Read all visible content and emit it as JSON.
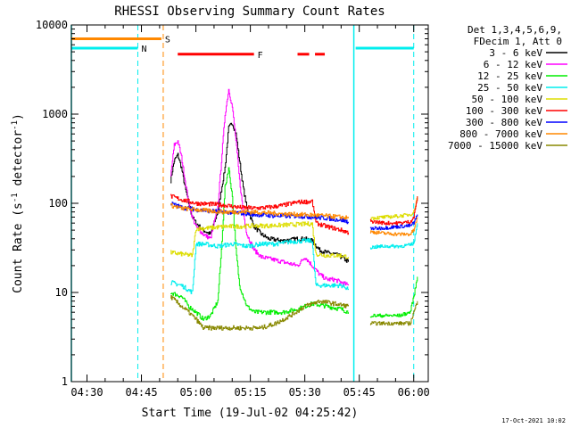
{
  "chart_data": {
    "type": "line",
    "title": "RHESSI Observing Summary Count Rates",
    "xlabel": "Start Time (19-Jul-02 04:25:42)",
    "ylabel": "Count Rate (s⁻¹ detector⁻¹)",
    "ylabel_parts": [
      "Count Rate (s",
      "-1",
      " detector",
      "-1",
      ")"
    ],
    "yscale": "log",
    "ylim": [
      1,
      10000
    ],
    "xlim_minutes": [
      25.7,
      124
    ],
    "x_ticks": [
      {
        "minute": 30,
        "label": "04:30"
      },
      {
        "minute": 45,
        "label": "04:45"
      },
      {
        "minute": 60,
        "label": "05:00"
      },
      {
        "minute": 75,
        "label": "05:15"
      },
      {
        "minute": 90,
        "label": "05:30"
      },
      {
        "minute": 105,
        "label": "05:45"
      },
      {
        "minute": 120,
        "label": "06:00"
      }
    ],
    "y_ticks": [
      {
        "value": 1,
        "label": "1"
      },
      {
        "value": 10,
        "label": "10"
      },
      {
        "value": 100,
        "label": "100"
      },
      {
        "value": 1000,
        "label": "1000"
      },
      {
        "value": 10000,
        "label": "10000"
      }
    ],
    "legend_header": [
      "Det 1,3,4,5,6,9,",
      "FDecim 1, Att 0"
    ],
    "series": [
      {
        "name": "3 - 6 keV",
        "color": "#000000",
        "points": [
          [
            53,
            180
          ],
          [
            54,
            300
          ],
          [
            55,
            350
          ],
          [
            56,
            250
          ],
          [
            57,
            150
          ],
          [
            58,
            100
          ],
          [
            59,
            70
          ],
          [
            60,
            60
          ],
          [
            62,
            50
          ],
          [
            64,
            45
          ],
          [
            66,
            80
          ],
          [
            68,
            250
          ],
          [
            69,
            700
          ],
          [
            70,
            800
          ],
          [
            71,
            600
          ],
          [
            72,
            300
          ],
          [
            73,
            150
          ],
          [
            74,
            90
          ],
          [
            75,
            70
          ],
          [
            76,
            55
          ],
          [
            78,
            45
          ],
          [
            80,
            40
          ],
          [
            84,
            38
          ],
          [
            88,
            40
          ],
          [
            90,
            40
          ],
          [
            92,
            38
          ],
          [
            94,
            30
          ],
          [
            96,
            28
          ],
          [
            98,
            27
          ],
          [
            100,
            25
          ],
          [
            102,
            22
          ]
        ]
      },
      {
        "name": "6 - 12 keV",
        "color": "#ff00ff",
        "points": [
          [
            53,
            200
          ],
          [
            54,
            450
          ],
          [
            55,
            500
          ],
          [
            56,
            330
          ],
          [
            57,
            180
          ],
          [
            58,
            100
          ],
          [
            59,
            70
          ],
          [
            60,
            55
          ],
          [
            62,
            45
          ],
          [
            64,
            40
          ],
          [
            66,
            90
          ],
          [
            67,
            300
          ],
          [
            68,
            1000
          ],
          [
            69,
            1900
          ],
          [
            70,
            1200
          ],
          [
            71,
            500
          ],
          [
            72,
            180
          ],
          [
            73,
            80
          ],
          [
            74,
            45
          ],
          [
            76,
            30
          ],
          [
            78,
            25
          ],
          [
            80,
            24
          ],
          [
            84,
            22
          ],
          [
            88,
            20
          ],
          [
            90,
            25
          ],
          [
            92,
            20
          ],
          [
            94,
            16
          ],
          [
            96,
            14
          ],
          [
            98,
            14
          ],
          [
            100,
            13
          ],
          [
            102,
            12
          ]
        ]
      },
      {
        "name": "12 - 25 keV",
        "color": "#00ee00",
        "points": [
          [
            53,
            10
          ],
          [
            56,
            9
          ],
          [
            58,
            7
          ],
          [
            60,
            6
          ],
          [
            62,
            5
          ],
          [
            64,
            5.5
          ],
          [
            66,
            8
          ],
          [
            67,
            30
          ],
          [
            68,
            150
          ],
          [
            69,
            250
          ],
          [
            70,
            120
          ],
          [
            71,
            30
          ],
          [
            72,
            12
          ],
          [
            74,
            7
          ],
          [
            76,
            6
          ],
          [
            80,
            6
          ],
          [
            84,
            6
          ],
          [
            88,
            6.5
          ],
          [
            92,
            7.5
          ],
          [
            96,
            7
          ],
          [
            100,
            6.5
          ],
          [
            102,
            6
          ]
        ]
      },
      {
        "name": "25 - 50 keV",
        "color": "#00eeee",
        "points": [
          [
            53,
            13
          ],
          [
            56,
            12
          ],
          [
            59,
            10
          ],
          [
            60,
            35
          ],
          [
            62,
            35
          ],
          [
            66,
            33
          ],
          [
            68,
            34
          ],
          [
            70,
            35
          ],
          [
            74,
            33
          ],
          [
            78,
            35
          ],
          [
            82,
            35
          ],
          [
            86,
            37
          ],
          [
            90,
            38
          ],
          [
            92,
            38
          ],
          [
            93,
            12
          ],
          [
            96,
            12
          ],
          [
            100,
            12
          ],
          [
            102,
            11
          ]
        ]
      },
      {
        "name": "50 - 100 keV",
        "color": "#dddd00",
        "points": [
          [
            53,
            28
          ],
          [
            56,
            27
          ],
          [
            59,
            26
          ],
          [
            60,
            52
          ],
          [
            64,
            53
          ],
          [
            68,
            55
          ],
          [
            72,
            55
          ],
          [
            76,
            56
          ],
          [
            80,
            56
          ],
          [
            84,
            57
          ],
          [
            88,
            58
          ],
          [
            92,
            59
          ],
          [
            93,
            27
          ],
          [
            96,
            26
          ],
          [
            100,
            26
          ],
          [
            102,
            25
          ]
        ]
      },
      {
        "name": "100 - 300 keV",
        "color": "#ff0000",
        "points": [
          [
            53,
            120
          ],
          [
            56,
            110
          ],
          [
            60,
            100
          ],
          [
            64,
            98
          ],
          [
            68,
            95
          ],
          [
            72,
            90
          ],
          [
            76,
            88
          ],
          [
            80,
            90
          ],
          [
            84,
            95
          ],
          [
            88,
            103
          ],
          [
            92,
            105
          ],
          [
            93,
            60
          ],
          [
            96,
            55
          ],
          [
            100,
            50
          ],
          [
            102,
            47
          ]
        ]
      },
      {
        "name": "300 - 800 keV",
        "color": "#0000ff",
        "points": [
          [
            53,
            100
          ],
          [
            56,
            90
          ],
          [
            60,
            85
          ],
          [
            64,
            82
          ],
          [
            68,
            80
          ],
          [
            72,
            78
          ],
          [
            76,
            75
          ],
          [
            80,
            73
          ],
          [
            84,
            72
          ],
          [
            88,
            72
          ],
          [
            92,
            70
          ],
          [
            96,
            68
          ],
          [
            100,
            65
          ],
          [
            102,
            62
          ]
        ]
      },
      {
        "name": "800 - 7000 keV",
        "color": "#ff8800",
        "points": [
          [
            53,
            95
          ],
          [
            56,
            88
          ],
          [
            60,
            85
          ],
          [
            64,
            82
          ],
          [
            68,
            80
          ],
          [
            72,
            80
          ],
          [
            76,
            80
          ],
          [
            80,
            78
          ],
          [
            84,
            76
          ],
          [
            88,
            75
          ],
          [
            92,
            74
          ],
          [
            96,
            72
          ],
          [
            100,
            70
          ],
          [
            102,
            68
          ]
        ]
      },
      {
        "name": "7000 - 15000 keV",
        "color": "#888800",
        "points": [
          [
            53,
            9
          ],
          [
            56,
            7
          ],
          [
            58,
            6
          ],
          [
            60,
            5
          ],
          [
            62,
            4
          ],
          [
            66,
            4
          ],
          [
            70,
            4
          ],
          [
            74,
            4
          ],
          [
            78,
            4
          ],
          [
            82,
            4.5
          ],
          [
            86,
            5.5
          ],
          [
            90,
            7
          ],
          [
            94,
            8
          ],
          [
            98,
            7.5
          ],
          [
            102,
            7
          ]
        ]
      }
    ],
    "late_data": [
      {
        "color": "#888800",
        "points": [
          [
            108,
            4.5
          ],
          [
            112,
            4.5
          ],
          [
            116,
            4.5
          ],
          [
            119,
            4.5
          ],
          [
            120,
            6
          ],
          [
            121,
            8
          ]
        ]
      },
      {
        "color": "#00ee00",
        "points": [
          [
            108,
            5.5
          ],
          [
            112,
            5.5
          ],
          [
            116,
            5.5
          ],
          [
            119,
            6
          ],
          [
            120,
            9
          ],
          [
            121,
            15
          ]
        ]
      },
      {
        "color": "#00eeee",
        "points": [
          [
            108,
            32
          ],
          [
            112,
            33
          ],
          [
            116,
            33
          ],
          [
            119,
            34
          ],
          [
            120,
            36
          ],
          [
            121,
            60
          ]
        ]
      },
      {
        "color": "#dddd00",
        "points": [
          [
            108,
            68
          ],
          [
            112,
            70
          ],
          [
            116,
            72
          ],
          [
            119,
            75
          ],
          [
            120,
            80
          ],
          [
            121,
            120
          ]
        ]
      },
      {
        "color": "#ff8800",
        "points": [
          [
            108,
            48
          ],
          [
            112,
            46
          ],
          [
            116,
            45
          ],
          [
            119,
            45
          ],
          [
            120,
            50
          ],
          [
            121,
            70
          ]
        ]
      },
      {
        "color": "#0000ff",
        "points": [
          [
            108,
            52
          ],
          [
            112,
            53
          ],
          [
            116,
            55
          ],
          [
            119,
            56
          ],
          [
            120,
            60
          ],
          [
            121,
            75
          ]
        ]
      },
      {
        "color": "#ff0000",
        "points": [
          [
            108,
            63
          ],
          [
            112,
            60
          ],
          [
            116,
            60
          ],
          [
            119,
            62
          ],
          [
            120,
            70
          ],
          [
            121,
            120
          ]
        ]
      }
    ],
    "annotations": {
      "S": {
        "label": "S",
        "color": "#ff8800",
        "value": 7000,
        "segments": [
          [
            25.7,
            50.5
          ]
        ]
      },
      "N": {
        "label": "N",
        "color": "#00eeee",
        "value": 5500,
        "segments": [
          [
            25.7,
            44
          ],
          [
            104,
            120
          ]
        ]
      },
      "F": {
        "label": "F",
        "color": "#ff0000",
        "value": 4700,
        "segments": [
          [
            55,
            76
          ],
          [
            88,
            91.2
          ],
          [
            92.8,
            95.5
          ]
        ]
      },
      "dashed_vlines": [
        {
          "minute": 44,
          "color": "#00eeee"
        },
        {
          "minute": 51,
          "color": "#ff8800"
        },
        {
          "minute": 120,
          "color": "#00eeee"
        }
      ],
      "solid_vlines": [
        {
          "minute": 25.7,
          "color": "#00eeee"
        },
        {
          "minute": 103.5,
          "color": "#00eeee"
        }
      ]
    }
  },
  "timestamp": "17-Oct-2021 10:02"
}
